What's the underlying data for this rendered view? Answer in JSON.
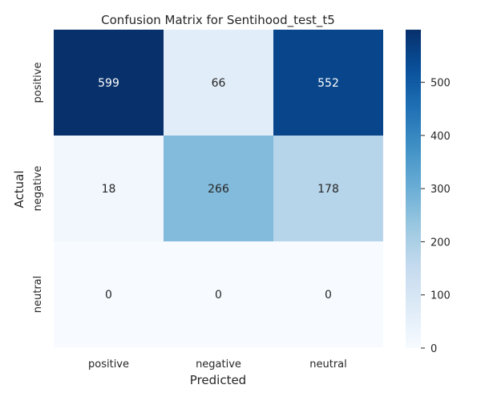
{
  "chart_data": {
    "type": "heatmap",
    "title": "Confusion Matrix for Sentihood_test_t5",
    "xlabel": "Predicted",
    "ylabel": "Actual",
    "x_categories": [
      "positive",
      "negative",
      "neutral"
    ],
    "y_categories": [
      "positive",
      "negative",
      "neutral"
    ],
    "values": [
      [
        599,
        66,
        552
      ],
      [
        18,
        266,
        178
      ],
      [
        0,
        0,
        0
      ]
    ],
    "colorbar": {
      "range": [
        0,
        599
      ],
      "ticks": [
        0,
        100,
        200,
        300,
        400,
        500
      ],
      "colormap": "Blues"
    },
    "colors": {
      "low": "#f7fbff",
      "high": "#08306b",
      "text_dark": "#262626",
      "text_light": "#ffffff"
    }
  }
}
